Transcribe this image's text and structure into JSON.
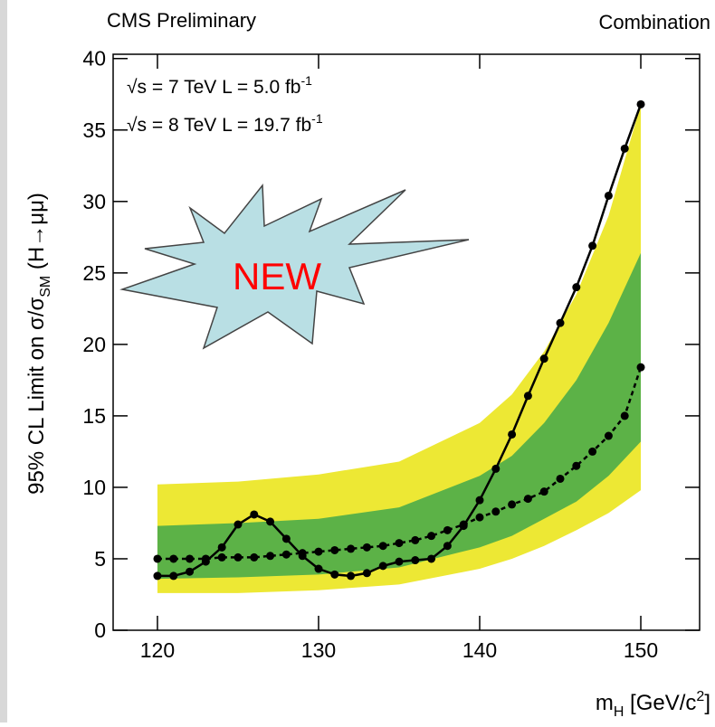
{
  "chart_data": {
    "type": "line",
    "title_left": "CMS Preliminary",
    "title_right": "Combination",
    "badge": "NEW",
    "annotations": [
      {
        "text": "√s = 7 TeV L = 5.0 fb",
        "sup": "-1"
      },
      {
        "text": "√s = 8 TeV L = 19.7 fb",
        "sup": "-1"
      }
    ],
    "y_label": {
      "main": "95% CL Limit on σ/σ",
      "sub": "SM",
      "tail": " (H→μμ)"
    },
    "x_label": {
      "main": "m",
      "sub": "H",
      "mid": " [GeV/c",
      "sup": "2",
      "tail": "]"
    },
    "xlim": [
      117.25,
      153.65
    ],
    "ylim": [
      0,
      40.3
    ],
    "xticks": [
      120,
      130,
      140,
      150
    ],
    "yticks": [
      0,
      5,
      10,
      15,
      20,
      25,
      30,
      35,
      40
    ],
    "bands": [
      {
        "color": "#ede834",
        "x": [
          120,
          125,
          130,
          135,
          140,
          142,
          144,
          146,
          148,
          150
        ],
        "low": [
          2.6,
          2.6,
          2.8,
          3.2,
          4.3,
          5.0,
          5.9,
          7.0,
          8.2,
          9.8
        ],
        "high": [
          10.2,
          10.4,
          10.9,
          11.8,
          14.5,
          16.5,
          19.5,
          23.5,
          29.0,
          36.8
        ]
      },
      {
        "color": "#5cb247",
        "x": [
          120,
          125,
          130,
          135,
          140,
          142,
          144,
          146,
          148,
          150
        ],
        "low": [
          3.6,
          3.7,
          3.9,
          4.4,
          5.8,
          6.6,
          7.8,
          9.0,
          10.8,
          13.2
        ],
        "high": [
          7.3,
          7.5,
          7.8,
          8.6,
          10.8,
          12.2,
          14.5,
          17.5,
          21.5,
          26.4
        ]
      }
    ],
    "x": [
      120,
      121,
      122,
      123,
      124,
      125,
      126,
      127,
      128,
      129,
      130,
      131,
      132,
      133,
      134,
      135,
      136,
      137,
      138,
      139,
      140,
      141,
      142,
      143,
      144,
      145,
      146,
      147,
      148,
      149,
      150
    ],
    "series": [
      {
        "color": "#000000",
        "dashed": true,
        "values": [
          5.0,
          5.0,
          5.0,
          5.0,
          5.1,
          5.1,
          5.1,
          5.2,
          5.3,
          5.4,
          5.5,
          5.6,
          5.7,
          5.8,
          5.9,
          6.1,
          6.3,
          6.6,
          7.0,
          7.4,
          7.9,
          8.3,
          8.8,
          9.2,
          9.7,
          10.6,
          11.5,
          12.5,
          13.6,
          15.0,
          18.4
        ]
      },
      {
        "color": "#000000",
        "dashed": false,
        "values": [
          3.8,
          3.8,
          4.1,
          4.8,
          5.8,
          7.4,
          8.1,
          7.6,
          6.4,
          5.2,
          4.3,
          3.9,
          3.8,
          4.0,
          4.5,
          4.8,
          4.9,
          5.0,
          5.9,
          7.3,
          9.1,
          11.3,
          13.7,
          16.4,
          19.0,
          21.5,
          24.0,
          26.9,
          30.4,
          33.7,
          36.8
        ]
      }
    ]
  }
}
